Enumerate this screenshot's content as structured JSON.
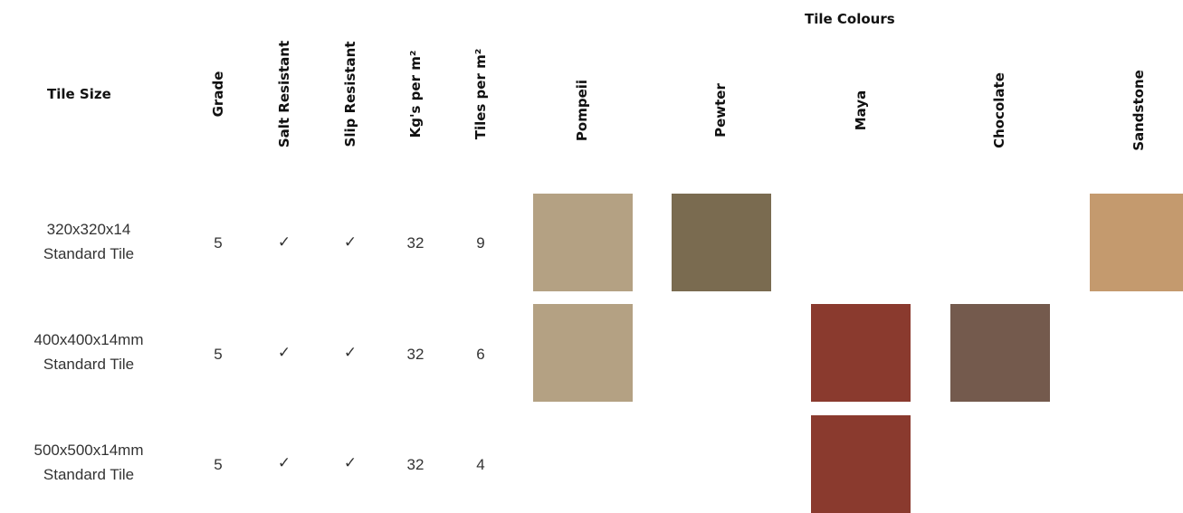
{
  "table": {
    "group_header": "Tile Colours",
    "headers": {
      "tile_size": "Tile Size",
      "grade": "Grade",
      "salt_resistant": "Salt Resistant",
      "slip_resistant": "Slip Resistant",
      "kgs_per_m2": "Kg's per m²",
      "tiles_per_m2": "Tiles per m²"
    },
    "colours": [
      "Pompeii",
      "Pewter",
      "Maya",
      "Chocolate",
      "Sandstone"
    ],
    "swatch_colors": {
      "Pompeii": "#b4a183",
      "Pewter": "#7a6b50",
      "Maya": "#8a3a2e",
      "Chocolate": "#745a4d",
      "Sandstone": "#c49a6e"
    },
    "rows": [
      {
        "size": "320x320x14",
        "type": "Standard Tile",
        "grade": "5",
        "salt": "✓",
        "slip": "✓",
        "kg": "32",
        "tiles": "9",
        "available": [
          "Pompeii",
          "Pewter",
          "Sandstone"
        ]
      },
      {
        "size": "400x400x14mm",
        "type": "Standard Tile",
        "grade": "5",
        "salt": "✓",
        "slip": "✓",
        "kg": "32",
        "tiles": "6",
        "available": [
          "Pompeii",
          "Maya",
          "Chocolate"
        ]
      },
      {
        "size": "500x500x14mm",
        "type": "Standard Tile",
        "grade": "5",
        "salt": "✓",
        "slip": "✓",
        "kg": "32",
        "tiles": "4",
        "available": [
          "Maya"
        ]
      }
    ]
  }
}
